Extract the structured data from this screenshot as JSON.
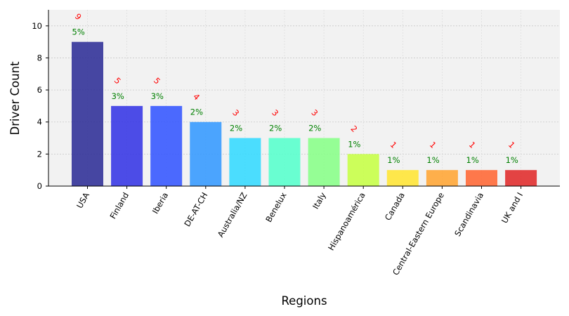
{
  "chart_data": {
    "type": "bar",
    "xlabel": "Regions",
    "ylabel": "Driver Count",
    "ylim": [
      0,
      11
    ],
    "yticks": [
      0,
      2,
      4,
      6,
      8,
      10
    ],
    "grid": true,
    "background": "#f2f2f2",
    "categories": [
      "USA",
      "Finland",
      "Iberia",
      "DE-AT-CH",
      "Australia/NZ",
      "Benelux",
      "Italy",
      "Hispanoamérica",
      "Canada",
      "Central-Eastern Europe",
      "Scandinavia",
      "UK and I"
    ],
    "values": [
      9,
      5,
      5,
      4,
      3,
      3,
      3,
      2,
      1,
      1,
      1,
      1
    ],
    "count_labels": [
      "9",
      "5",
      "5",
      "4",
      "3",
      "3",
      "3",
      "2",
      "1",
      "1",
      "1",
      "1"
    ],
    "percent_labels": [
      "5%",
      "3%",
      "3%",
      "2%",
      "2%",
      "2%",
      "2%",
      "1%",
      "1%",
      "1%",
      "1%",
      "1%"
    ],
    "colors": [
      "#2d2d96",
      "#3434e5",
      "#3355ff",
      "#3399ff",
      "#33d9ff",
      "#55ffcc",
      "#88ff88",
      "#c6ff44",
      "#ffe533",
      "#ffa533",
      "#ff6633",
      "#e02a2a"
    ],
    "count_label_color": "#ff0000",
    "percent_label_color": "#008000"
  }
}
